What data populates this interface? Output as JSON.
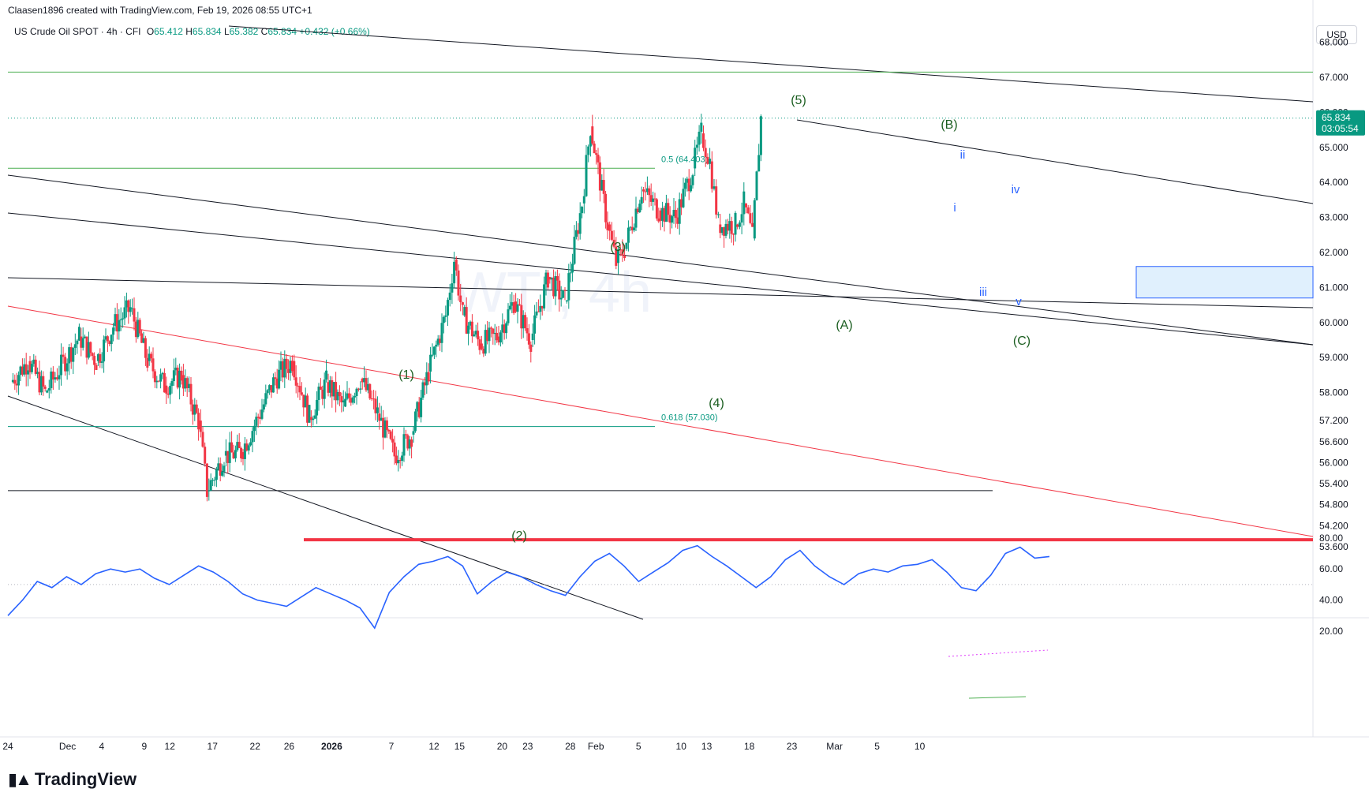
{
  "header": {
    "attribution": "Claasen1896 created with TradingView.com, Feb 19, 2026 08:55 UTC+1",
    "symbol": "US Crude Oil SPOT · 4h · CFI",
    "ohlc": [
      {
        "k": "O",
        "v": "65.412"
      },
      {
        "k": "H",
        "v": "65.834"
      },
      {
        "k": "L",
        "v": "65.382"
      },
      {
        "k": "C",
        "v": "65.834"
      }
    ],
    "change": "+0.432 (+0.66%)",
    "currency": "USD"
  },
  "price_badge": {
    "price": "65.834",
    "countdown": "03:05:54"
  },
  "brand": "TradingView",
  "colors": {
    "up": "#089981",
    "down": "#f23645",
    "rsi": "#2962ff",
    "badge": "#089981",
    "support": "#f23645"
  },
  "chart_data": [
    {
      "type": "candlestick",
      "title": "US Crude Oil SPOT · 4h · CFI",
      "x_tick_labels": [
        "24",
        "Dec",
        "4",
        "9",
        "12",
        "17",
        "22",
        "26",
        "2026",
        "7",
        "12",
        "15",
        "20",
        "23",
        "28",
        "Feb",
        "5",
        "10",
        "13",
        "18",
        "23",
        "Mar",
        "5",
        "10"
      ],
      "y_tick_labels": [
        "68.000",
        "67.000",
        "66.000",
        "65.000",
        "64.000",
        "63.000",
        "62.000",
        "61.000",
        "60.000",
        "59.000",
        "58.000",
        "57.200",
        "56.600",
        "56.000",
        "55.400",
        "54.800",
        "54.200",
        "53.600"
      ],
      "ylim": [
        53.4,
        68.6
      ],
      "close_path": [
        {
          "date": "Nov 24",
          "close": 58.3
        },
        {
          "date": "Nov 26",
          "close": 58.9
        },
        {
          "date": "Nov 28",
          "close": 58.0
        },
        {
          "date": "Dec 1",
          "close": 59.6
        },
        {
          "date": "Dec 3",
          "close": 58.9
        },
        {
          "date": "Dec 5",
          "close": 59.9
        },
        {
          "date": "Dec 7",
          "close": 60.4
        },
        {
          "date": "Dec 9",
          "close": 58.9
        },
        {
          "date": "Dec 11",
          "close": 58.2
        },
        {
          "date": "Dec 13",
          "close": 58.5
        },
        {
          "date": "Dec 15",
          "close": 57.2
        },
        {
          "date": "Dec 16",
          "close": 55.2
        },
        {
          "date": "Dec 18",
          "close": 56.2
        },
        {
          "date": "Dec 20",
          "close": 56.3
        },
        {
          "date": "Dec 22",
          "close": 57.3
        },
        {
          "date": "Dec 24",
          "close": 58.4
        },
        {
          "date": "Dec 26",
          "close": 58.9
        },
        {
          "date": "Dec 28",
          "close": 57.3
        },
        {
          "date": "Dec 30",
          "close": 58.3
        },
        {
          "date": "Jan 1",
          "close": 57.6
        },
        {
          "date": "Jan 3",
          "close": 58.4
        },
        {
          "date": "Jan 5",
          "close": 57.4
        },
        {
          "date": "Jan 7",
          "close": 56.2
        },
        {
          "date": "Jan 9",
          "close": 56.8
        },
        {
          "date": "Jan 11",
          "close": 58.6
        },
        {
          "date": "Jan 13",
          "close": 60.2
        },
        {
          "date": "Jan 14",
          "close": 61.8
        },
        {
          "date": "Jan 15",
          "close": 60.2
        },
        {
          "date": "Jan 17",
          "close": 59.4
        },
        {
          "date": "Jan 19",
          "close": 59.6
        },
        {
          "date": "Jan 21",
          "close": 60.6
        },
        {
          "date": "Jan 23",
          "close": 59.5
        },
        {
          "date": "Jan 25",
          "close": 61.3
        },
        {
          "date": "Jan 27",
          "close": 60.6
        },
        {
          "date": "Jan 29",
          "close": 63.4
        },
        {
          "date": "Jan 30",
          "close": 65.6
        },
        {
          "date": "Feb 1",
          "close": 62.8
        },
        {
          "date": "Feb 2",
          "close": 61.7
        },
        {
          "date": "Feb 3",
          "close": 62.1
        },
        {
          "date": "Feb 5",
          "close": 63.8
        },
        {
          "date": "Feb 7",
          "close": 63.2
        },
        {
          "date": "Feb 9",
          "close": 63.0
        },
        {
          "date": "Feb 11",
          "close": 64.4
        },
        {
          "date": "Feb 12",
          "close": 65.4
        },
        {
          "date": "Feb 13",
          "close": 64.6
        },
        {
          "date": "Feb 14",
          "close": 62.8
        },
        {
          "date": "Feb 16",
          "close": 62.8
        },
        {
          "date": "Feb 17",
          "close": 63.4
        },
        {
          "date": "Feb 18",
          "close": 62.4
        },
        {
          "date": "Feb 19",
          "close": 65.834
        }
      ],
      "price_lines": [
        {
          "label": "0.5 (64.403)",
          "value": 64.403
        },
        {
          "label": "0.618 (57.030)",
          "value": 57.03
        },
        {
          "label": "",
          "value": 67.15
        },
        {
          "label": "",
          "value": 55.2
        },
        {
          "label": "",
          "value": 53.8
        }
      ],
      "wave_labels": [
        {
          "text": "(1)",
          "date": "Dec 26"
        },
        {
          "text": "(2)",
          "date": "Jan 7"
        },
        {
          "text": "(3)",
          "date": "Jan 14"
        },
        {
          "text": "(4)",
          "date": "Jan 23"
        },
        {
          "text": "(5)",
          "date": "Jan 30"
        },
        {
          "text": "(A)",
          "date": "Feb 2"
        },
        {
          "text": "(B)",
          "date": "Feb 12"
        },
        {
          "text": "(C)",
          "date": "Feb 18"
        },
        {
          "text": "i",
          "date": "Feb 12"
        },
        {
          "text": "ii",
          "date": "Feb 12"
        },
        {
          "text": "iii",
          "date": "Feb 14"
        },
        {
          "text": "iv",
          "date": "Feb 17"
        },
        {
          "text": "v",
          "date": "Feb 17"
        }
      ],
      "zone": {
        "from": 60.7,
        "to": 61.6
      }
    },
    {
      "type": "line",
      "title": "",
      "y_tick_labels": [
        "80.00",
        "60.00",
        "40.00",
        "20.00"
      ],
      "ylim": [
        15,
        85
      ],
      "values": [
        30,
        40,
        52,
        48,
        55,
        50,
        57,
        60,
        58,
        60,
        54,
        50,
        56,
        62,
        58,
        52,
        44,
        40,
        38,
        36,
        42,
        48,
        44,
        40,
        35,
        22,
        45,
        55,
        63,
        65,
        68,
        62,
        44,
        52,
        58,
        55,
        50,
        46,
        43,
        55,
        65,
        70,
        62,
        52,
        58,
        64,
        72,
        75,
        68,
        62,
        55,
        48,
        55,
        66,
        72,
        62,
        55,
        50,
        57,
        60,
        58,
        62,
        63,
        66,
        58,
        48,
        46,
        56,
        70,
        74,
        67,
        68
      ]
    }
  ]
}
